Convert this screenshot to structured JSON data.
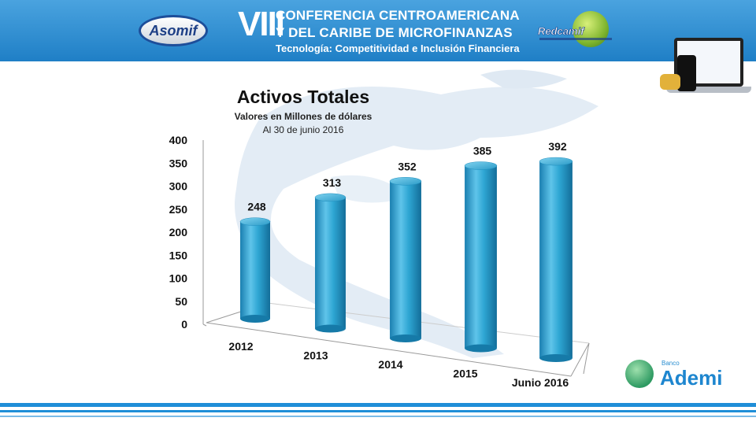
{
  "header": {
    "asomif_logo": "Asomif",
    "roman_numeral": "VIII",
    "line1": "CONFERENCIA CENTROAMERICANA",
    "line2": "Y DEL CARIBE DE MICROFINANZAS",
    "line3": "Tecnología: Competitividad e Inclusión Financiera",
    "redcamif_logo": "Redcamif"
  },
  "footer": {
    "brand_small": "Banco",
    "brand_name": "Ademi"
  },
  "colors": {
    "header_blue": "#2b8fd6",
    "bar_blue": "#2ea6d3",
    "map_background": "#e6eef6"
  },
  "chart_data": {
    "type": "bar",
    "style": "3d-cylinder",
    "title": "Activos Totales",
    "subtitle": "Valores en Millones de dólares",
    "subtitle2": "Al 30 de junio 2016",
    "categories": [
      "2012",
      "2013",
      "2014",
      "2015",
      "Junio 2016"
    ],
    "values": [
      248,
      313,
      352,
      385,
      392
    ],
    "data_labels": [
      "248",
      "313",
      "352",
      "385",
      "392"
    ],
    "ylim": [
      0,
      400
    ],
    "yticks": [
      0,
      50,
      100,
      150,
      200,
      250,
      300,
      350,
      400
    ],
    "xlabel": "",
    "ylabel": "",
    "grid": false,
    "legend": "none"
  }
}
